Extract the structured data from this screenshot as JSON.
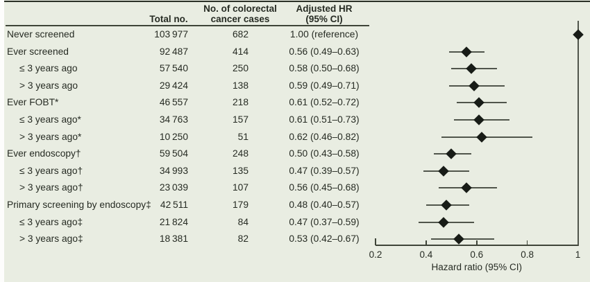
{
  "table": {
    "headers": {
      "total": "Total no.",
      "cases_line1": "No. of colorectal",
      "cases_line2": "cancer cases",
      "hr_line1": "Adjusted HR",
      "hr_line2": "(95% CI)"
    },
    "rows": [
      {
        "label": "Never screened",
        "indent": false,
        "total": "103 977",
        "cases": "682",
        "hr_text": "1.00 (reference)",
        "hr": 1.0,
        "ci_low": null,
        "ci_high": null,
        "reference": true
      },
      {
        "label": "Ever screened",
        "indent": false,
        "total": "92 487",
        "cases": "414",
        "hr_text": "0.56 (0.49–0.63)",
        "hr": 0.56,
        "ci_low": 0.49,
        "ci_high": 0.63,
        "reference": false
      },
      {
        "label": "≤ 3 years ago",
        "indent": true,
        "total": "57 540",
        "cases": "250",
        "hr_text": "0.58 (0.50–0.68)",
        "hr": 0.58,
        "ci_low": 0.5,
        "ci_high": 0.68,
        "reference": false
      },
      {
        "label": "> 3 years ago",
        "indent": true,
        "total": "29 424",
        "cases": "138",
        "hr_text": "0.59 (0.49–0.71)",
        "hr": 0.59,
        "ci_low": 0.49,
        "ci_high": 0.71,
        "reference": false
      },
      {
        "label": "Ever FOBT*",
        "indent": false,
        "total": "46 557",
        "cases": "218",
        "hr_text": "0.61 (0.52–0.72)",
        "hr": 0.61,
        "ci_low": 0.52,
        "ci_high": 0.72,
        "reference": false
      },
      {
        "label": "≤ 3 years ago*",
        "indent": true,
        "total": "34 763",
        "cases": "157",
        "hr_text": "0.61 (0.51–0.73)",
        "hr": 0.61,
        "ci_low": 0.51,
        "ci_high": 0.73,
        "reference": false
      },
      {
        "label": "> 3 years ago*",
        "indent": true,
        "total": "10 250",
        "cases": "51",
        "hr_text": "0.62 (0.46–0.82)",
        "hr": 0.62,
        "ci_low": 0.46,
        "ci_high": 0.82,
        "reference": false
      },
      {
        "label": "Ever endoscopy†",
        "indent": false,
        "total": "59 504",
        "cases": "248",
        "hr_text": "0.50 (0.43–0.58)",
        "hr": 0.5,
        "ci_low": 0.43,
        "ci_high": 0.58,
        "reference": false
      },
      {
        "label": "≤ 3 years ago†",
        "indent": true,
        "total": "34 993",
        "cases": "135",
        "hr_text": "0.47 (0.39–0.57)",
        "hr": 0.47,
        "ci_low": 0.39,
        "ci_high": 0.57,
        "reference": false
      },
      {
        "label": "> 3 years ago†",
        "indent": true,
        "total": "23 039",
        "cases": "107",
        "hr_text": "0.56 (0.45–0.68)",
        "hr": 0.56,
        "ci_low": 0.45,
        "ci_high": 0.68,
        "reference": false
      },
      {
        "label": "Primary screening by endoscopy‡",
        "indent": false,
        "total": "42 511",
        "cases": "179",
        "hr_text": "0.48 (0.40–0.57)",
        "hr": 0.48,
        "ci_low": 0.4,
        "ci_high": 0.57,
        "reference": false
      },
      {
        "label": "≤ 3 years ago‡",
        "indent": true,
        "total": "21 824",
        "cases": "84",
        "hr_text": "0.47 (0.37–0.59)",
        "hr": 0.47,
        "ci_low": 0.37,
        "ci_high": 0.59,
        "reference": false
      },
      {
        "label": "> 3 years ago‡",
        "indent": true,
        "total": "18 381",
        "cases": "82",
        "hr_text": "0.53 (0.42–0.67)",
        "hr": 0.53,
        "ci_low": 0.42,
        "ci_high": 0.67,
        "reference": false
      }
    ]
  },
  "chart_data": {
    "type": "scatter",
    "subtype": "forest-plot",
    "title": "",
    "xlabel": "Hazard ratio (95% CI)",
    "xlim": [
      0.2,
      1.0
    ],
    "x_ticks": [
      0.2,
      0.4,
      0.6,
      0.8,
      1
    ],
    "x_tick_labels": [
      "0.2",
      "0.4",
      "0.6",
      "0.8",
      "1"
    ],
    "reference_line_x": 1.0,
    "grid": false,
    "marker": "diamond",
    "points": [
      {
        "label": "Never screened",
        "hr": 1.0,
        "ci_low": null,
        "ci_high": null
      },
      {
        "label": "Ever screened",
        "hr": 0.56,
        "ci_low": 0.49,
        "ci_high": 0.63
      },
      {
        "label": "≤ 3 years ago",
        "hr": 0.58,
        "ci_low": 0.5,
        "ci_high": 0.68
      },
      {
        "label": "> 3 years ago",
        "hr": 0.59,
        "ci_low": 0.49,
        "ci_high": 0.71
      },
      {
        "label": "Ever FOBT*",
        "hr": 0.61,
        "ci_low": 0.52,
        "ci_high": 0.72
      },
      {
        "label": "≤ 3 years ago*",
        "hr": 0.61,
        "ci_low": 0.51,
        "ci_high": 0.73
      },
      {
        "label": "> 3 years ago*",
        "hr": 0.62,
        "ci_low": 0.46,
        "ci_high": 0.82
      },
      {
        "label": "Ever endoscopy†",
        "hr": 0.5,
        "ci_low": 0.43,
        "ci_high": 0.58
      },
      {
        "label": "≤ 3 years ago†",
        "hr": 0.47,
        "ci_low": 0.39,
        "ci_high": 0.57
      },
      {
        "label": "> 3 years ago†",
        "hr": 0.56,
        "ci_low": 0.45,
        "ci_high": 0.68
      },
      {
        "label": "Primary screening by endoscopy‡",
        "hr": 0.48,
        "ci_low": 0.4,
        "ci_high": 0.57
      },
      {
        "label": "≤ 3 years ago‡",
        "hr": 0.47,
        "ci_low": 0.37,
        "ci_high": 0.59
      },
      {
        "label": "> 3 years ago‡",
        "hr": 0.53,
        "ci_low": 0.42,
        "ci_high": 0.67
      }
    ]
  },
  "colors": {
    "background": "#e9ede2",
    "top_rule": "#2b3127",
    "text": "#262b23",
    "line": "#50554b",
    "marker": "#181c17"
  }
}
